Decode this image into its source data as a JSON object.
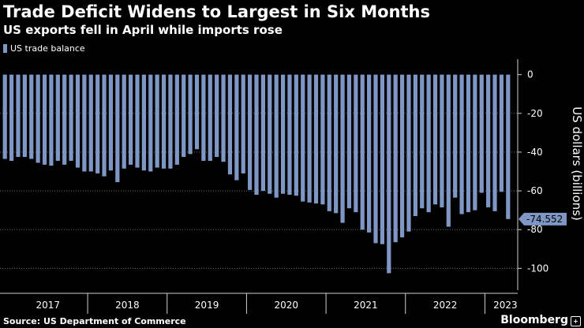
{
  "header": {
    "title": "Trade Deficit Widens to Largest in Six Months",
    "subtitle": "US exports fell in April while imports rose"
  },
  "footer": {
    "source": "Source: US Department of Commerce",
    "brand": "Bloomberg"
  },
  "colors": {
    "background": "#000000",
    "bar": "#7e97c4",
    "grid": "#6b6b6b",
    "text": "#ffffff",
    "callout_bg": "#7e97c4"
  },
  "chart_data": {
    "type": "bar",
    "series": [
      {
        "name": "US trade balance",
        "x": [
          "2016-12",
          "2017-01",
          "2017-02",
          "2017-03",
          "2017-04",
          "2017-05",
          "2017-06",
          "2017-07",
          "2017-08",
          "2017-09",
          "2017-10",
          "2017-11",
          "2017-12",
          "2018-01",
          "2018-02",
          "2018-03",
          "2018-04",
          "2018-05",
          "2018-06",
          "2018-07",
          "2018-08",
          "2018-09",
          "2018-10",
          "2018-11",
          "2018-12",
          "2019-01",
          "2019-02",
          "2019-03",
          "2019-04",
          "2019-05",
          "2019-06",
          "2019-07",
          "2019-08",
          "2019-09",
          "2019-10",
          "2019-11",
          "2019-12",
          "2020-01",
          "2020-02",
          "2020-03",
          "2020-04",
          "2020-05",
          "2020-06",
          "2020-07",
          "2020-08",
          "2020-09",
          "2020-10",
          "2020-11",
          "2020-12",
          "2021-01",
          "2021-02",
          "2021-03",
          "2021-04",
          "2021-05",
          "2021-06",
          "2021-07",
          "2021-08",
          "2021-09",
          "2021-10",
          "2021-11",
          "2021-12",
          "2022-01",
          "2022-02",
          "2022-03",
          "2022-04",
          "2022-05",
          "2022-06",
          "2022-07",
          "2022-08",
          "2022-09",
          "2022-10",
          "2022-11",
          "2022-12",
          "2023-01",
          "2023-02",
          "2023-03",
          "2023-04"
        ],
        "values": [
          -43.5,
          -44.5,
          -42.5,
          -42.5,
          -43.5,
          -45.5,
          -46.5,
          -47.0,
          -44.5,
          -46.5,
          -44.5,
          -48.0,
          -50.0,
          -50.0,
          -51.0,
          -52.5,
          -49.5,
          -55.5,
          -48.5,
          -46.5,
          -48.0,
          -49.5,
          -50.0,
          -48.0,
          -48.5,
          -48.5,
          -46.5,
          -42.5,
          -41.0,
          -38.5,
          -44.5,
          -44.5,
          -42.5,
          -45.0,
          -51.5,
          -54.5,
          -51.0,
          -59.5,
          -62.0,
          -60.0,
          -61.5,
          -63.5,
          -61.5,
          -62.0,
          -62.5,
          -65.5,
          -66.0,
          -66.5,
          -67.0,
          -70.5,
          -71.5,
          -76.5,
          -69.0,
          -71.0,
          -80.0,
          -81.5,
          -87.0,
          -87.5,
          -102.5,
          -86.5,
          -84.0,
          -81.0,
          -73.0,
          -69.0,
          -71.0,
          -67.0,
          -68.5,
          -78.5,
          -63.5,
          -72.0,
          -71.0,
          -70.0,
          -61.0,
          -68.5,
          -70.5,
          -60.5,
          -74.552
        ]
      }
    ],
    "highlight": {
      "label": "-74.552",
      "value": -74.552
    },
    "xlabel": "",
    "ylabel": "US dollars (billions)",
    "ylim": [
      -108,
      8
    ],
    "yticks": [
      0,
      -20,
      -40,
      -60,
      -80,
      -100
    ],
    "year_labels": [
      "2017",
      "2018",
      "2019",
      "2020",
      "2021",
      "2022",
      "2023"
    ],
    "grid": true,
    "legend_position": "top-left"
  }
}
